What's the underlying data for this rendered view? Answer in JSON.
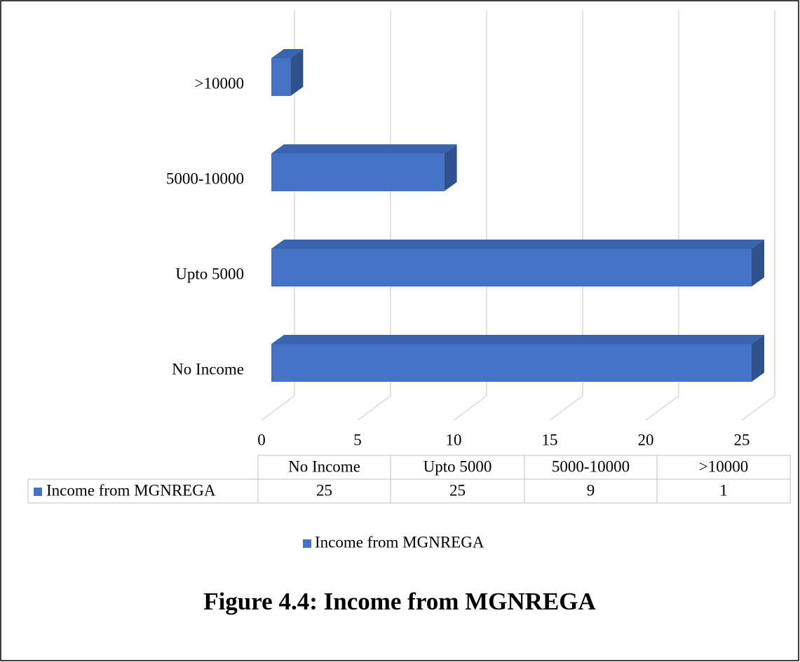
{
  "chart_data": {
    "type": "bar3d_horizontal",
    "title": "Figure 4.4: Income from MGNREGA",
    "categories": [
      "No Income",
      "Upto 5000",
      "5000-10000",
      ">10000"
    ],
    "series": [
      {
        "name": "Income from MGNREGA",
        "color": "#4472c4",
        "values": [
          25,
          25,
          9,
          1
        ]
      }
    ],
    "xlim": [
      0,
      25
    ],
    "xticks": [
      0,
      5,
      10,
      15,
      20,
      25
    ],
    "grid": true,
    "data_table": true,
    "legend": "bottom"
  }
}
